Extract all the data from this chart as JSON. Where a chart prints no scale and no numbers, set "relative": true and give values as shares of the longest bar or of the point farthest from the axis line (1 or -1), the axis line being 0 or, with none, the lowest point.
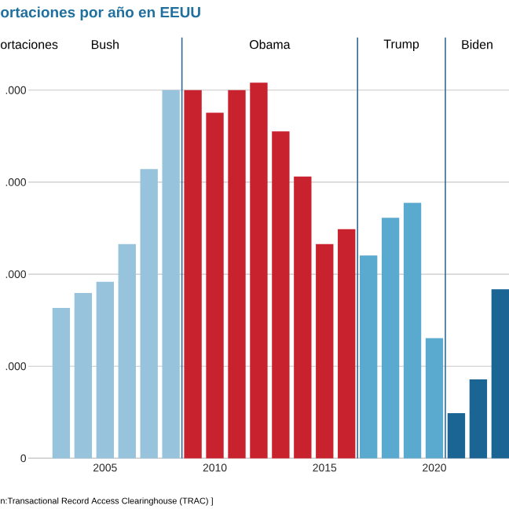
{
  "chart_data": {
    "type": "bar",
    "title": "ortaciones por año en EEUU",
    "ylabel": "ortaciones",
    "relative": true,
    "x": [
      2003,
      2004,
      2005,
      2006,
      2007,
      2008,
      2009,
      2010,
      2011,
      2012,
      2013,
      2014,
      2015,
      2016,
      2017,
      2018,
      2019,
      2020,
      2021,
      2022,
      2023
    ],
    "values": [
      0.4,
      0.44,
      0.47,
      0.57,
      0.77,
      0.98,
      0.98,
      0.92,
      0.98,
      1,
      0.87,
      0.75,
      0.57,
      0.61,
      0.54,
      0.64,
      0.68,
      0.32,
      0.12,
      0.21,
      0.45
    ],
    "colors": [
      "#97c3dc",
      "#97c3dc",
      "#97c3dc",
      "#97c3dc",
      "#97c3dc",
      "#97c3dc",
      "#c9222f",
      "#c9222f",
      "#c9222f",
      "#c9222f",
      "#c9222f",
      "#c9222f",
      "#c9222f",
      "#c9222f",
      "#5aaad0",
      "#5aaad0",
      "#5aaad0",
      "#5aaad0",
      "#1a6593",
      "#1a6593",
      "#1a6593"
    ],
    "xlim": [
      2001.5,
      2023.4
    ],
    "xticks": [
      2005,
      2010,
      2015,
      2020
    ],
    "ref_lines": [
      {
        "axis": "x",
        "value": 2008.5,
        "label": null,
        "color": "#2f6a95"
      },
      {
        "axis": "x",
        "value": 2016.5,
        "label": null,
        "color": "#2f6a95"
      },
      {
        "axis": "x",
        "value": 2020.5,
        "label": null,
        "color": "#2f6a95"
      }
    ],
    "annotations": [
      "Bush",
      "Obama",
      "Trump",
      "Biden",
      "n:Transactional Record Access Clearinghouse (TRAC) ]",
      "0",
      ".000",
      ".000",
      ".000",
      ".000"
    ]
  }
}
